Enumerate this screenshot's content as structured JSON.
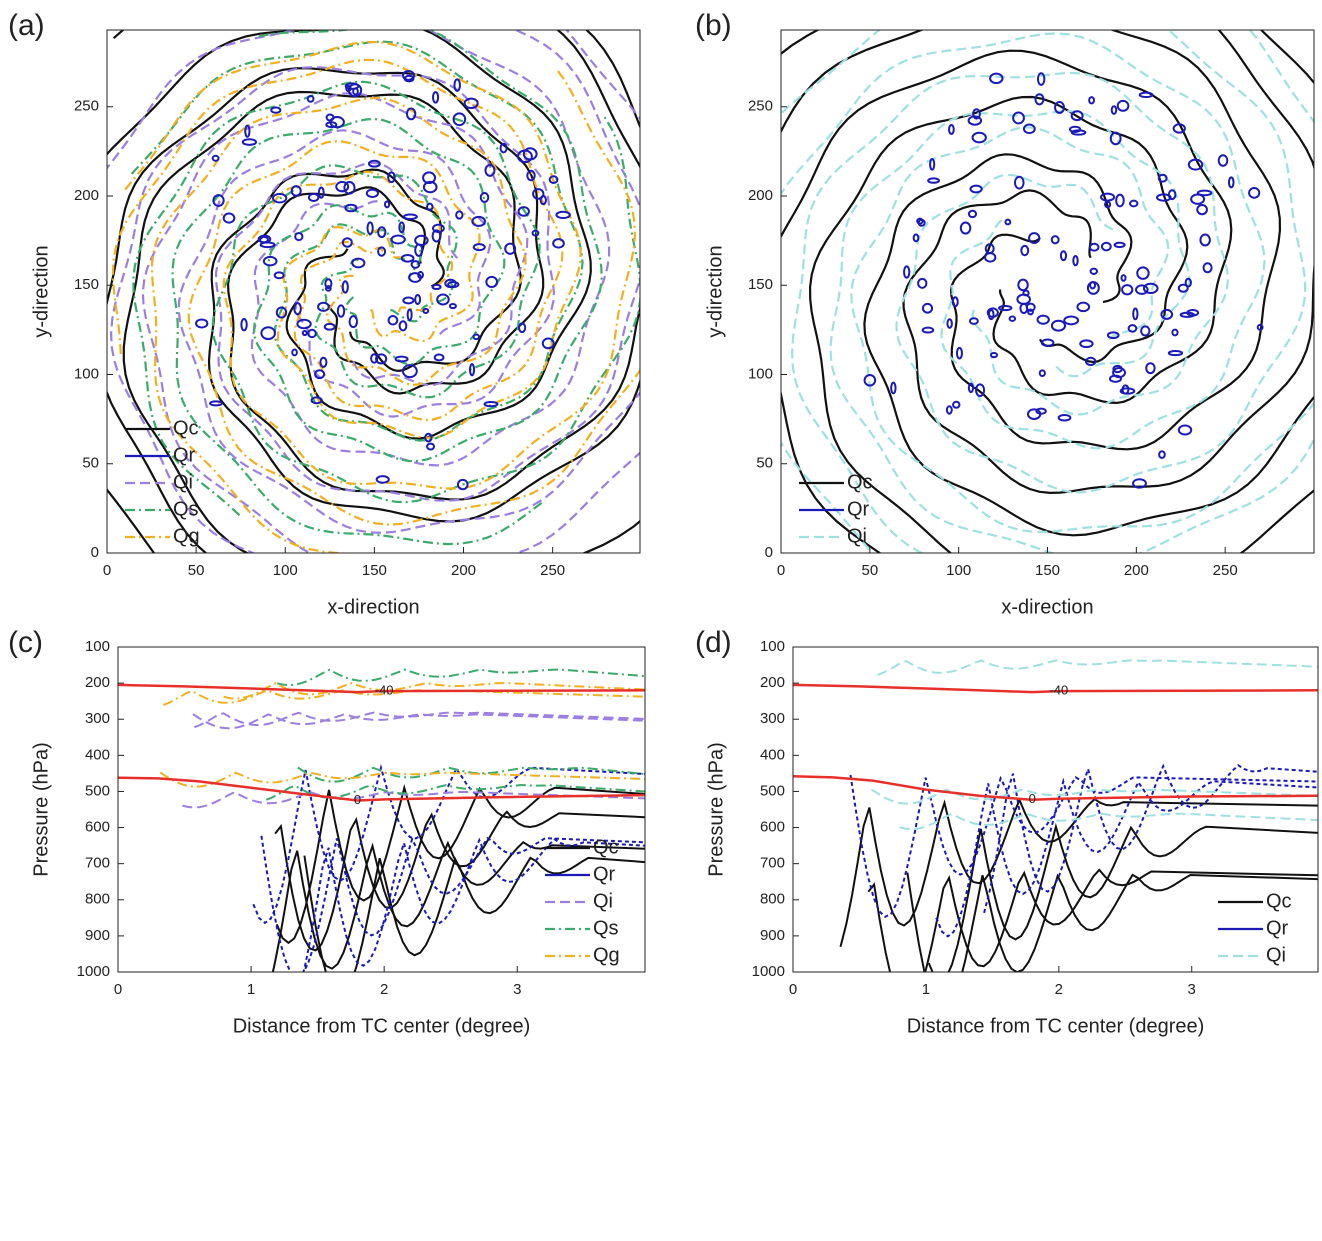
{
  "chart_data": [
    {
      "type": "contour",
      "panel_label": "(a)",
      "xlabel": "x-direction",
      "ylabel": "y-direction",
      "xlim": [
        0,
        299
      ],
      "ylim": [
        0,
        293
      ],
      "xticks": [
        0,
        50,
        100,
        150,
        200,
        250
      ],
      "yticks": [
        0,
        50,
        100,
        150,
        200,
        250
      ],
      "legend": "lower left",
      "series": [
        {
          "name": "Qc",
          "color": "#111111",
          "dash": "none"
        },
        {
          "name": "Qr",
          "color": "#1a1ab8",
          "dash": "none"
        },
        {
          "name": "Qi",
          "color": "#9b7fe0",
          "dash": "10,5"
        },
        {
          "name": "Qs",
          "color": "#3caa6a",
          "dash": "10,4,2,4"
        },
        {
          "name": "Qg",
          "color": "#f0b020",
          "dash": "10,4,2,4"
        }
      ]
    },
    {
      "type": "contour",
      "panel_label": "(b)",
      "xlabel": "x-direction",
      "ylabel": "y-direction",
      "xlim": [
        0,
        300
      ],
      "ylim": [
        0,
        293
      ],
      "xticks": [
        0,
        50,
        100,
        150,
        200,
        250
      ],
      "yticks": [
        0,
        50,
        100,
        150,
        200,
        250
      ],
      "legend": "lower left",
      "series": [
        {
          "name": "Qc",
          "color": "#111111",
          "dash": "none"
        },
        {
          "name": "Qr",
          "color": "#1a1ab8",
          "dash": "none"
        },
        {
          "name": "Qi",
          "color": "#9fe0e0",
          "dash": "10,5"
        }
      ]
    },
    {
      "type": "contour",
      "panel_label": "(c)",
      "xlabel": "Distance from TC center (degree)",
      "ylabel": "Pressure (hPa)",
      "xlim": [
        0,
        3.96
      ],
      "ylim": [
        1000,
        100
      ],
      "xticks": [
        0,
        1,
        2,
        3
      ],
      "yticks": [
        100,
        200,
        300,
        400,
        500,
        600,
        700,
        800,
        900,
        1000
      ],
      "legend": "lower right",
      "series": [
        {
          "name": "Qc",
          "color": "#111111",
          "dash": "none"
        },
        {
          "name": "Qr",
          "color": "#1a1ab8",
          "dash": "none"
        },
        {
          "name": "Qi",
          "color": "#9b7fe0",
          "dash": "10,5"
        },
        {
          "name": "Qs",
          "color": "#3caa6a",
          "dash": "10,4,2,4"
        },
        {
          "name": "Qg",
          "color": "#f0b020",
          "dash": "10,4,2,4"
        }
      ],
      "isotherms": [
        {
          "label": "-40",
          "color": "#e8302a",
          "x": [
            0,
            0.5,
            1,
            1.5,
            1.8,
            2,
            3,
            3.96
          ],
          "values": [
            205,
            209,
            215,
            221,
            225,
            222,
            221,
            220
          ]
        },
        {
          "label": "0",
          "color": "#e8302a",
          "x": [
            0,
            0.3,
            0.6,
            1,
            1.4,
            1.8,
            2,
            3,
            3.96
          ],
          "values": [
            462,
            464,
            472,
            490,
            508,
            525,
            522,
            515,
            510
          ]
        }
      ]
    },
    {
      "type": "contour",
      "panel_label": "(d)",
      "xlabel": "Distance from TC center (degree)",
      "ylabel": "Pressure (hPa)",
      "xlim": [
        0,
        3.95
      ],
      "ylim": [
        1000,
        100
      ],
      "xticks": [
        0,
        1,
        2,
        3
      ],
      "yticks": [
        100,
        200,
        300,
        400,
        500,
        600,
        700,
        800,
        900,
        1000
      ],
      "legend": "lower right",
      "series": [
        {
          "name": "Qc",
          "color": "#111111",
          "dash": "none"
        },
        {
          "name": "Qr",
          "color": "#1a1ab8",
          "dash": "none"
        },
        {
          "name": "Qi",
          "color": "#9fe0e0",
          "dash": "10,5"
        }
      ],
      "isotherms": [
        {
          "label": "-40",
          "color": "#e8302a",
          "x": [
            0,
            0.5,
            1,
            1.5,
            1.8,
            2,
            3,
            3.95
          ],
          "values": [
            205,
            209,
            215,
            221,
            225,
            222,
            221,
            220
          ]
        },
        {
          "label": "0",
          "color": "#e8302a",
          "x": [
            0,
            0.3,
            0.6,
            1,
            1.4,
            1.8,
            2,
            3,
            3.95
          ],
          "values": [
            458,
            461,
            470,
            495,
            512,
            523,
            520,
            514,
            512
          ]
        }
      ]
    }
  ]
}
